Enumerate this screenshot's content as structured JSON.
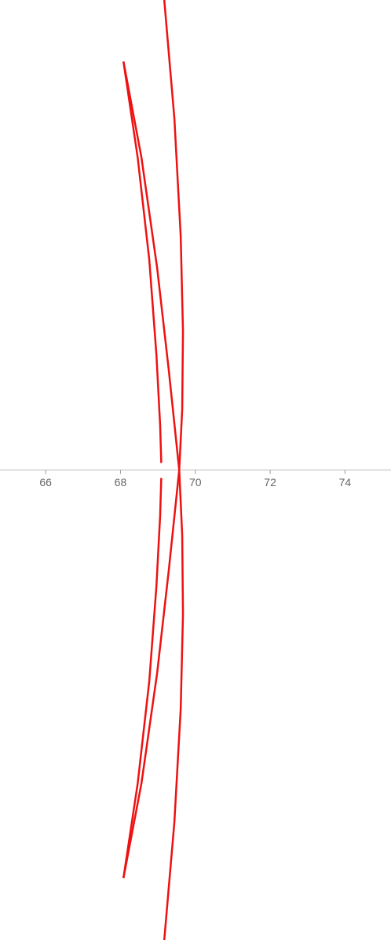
{
  "chart_data": {
    "type": "line",
    "xlim": [
      64.78,
      75.23
    ],
    "ylim": [
      -1.0,
      1.0
    ],
    "xticks": [
      66,
      68,
      70,
      72,
      74
    ],
    "series": [
      {
        "color": "#ee1111",
        "x": [
          69.17,
          69.44,
          69.61,
          69.67,
          69.65,
          69.57,
          69.65,
          69.67,
          69.61,
          69.44,
          69.17
        ],
        "values": [
          1.0,
          0.749,
          0.497,
          0.296,
          0.129,
          0,
          -0.139,
          -0.307,
          -0.508,
          -0.75,
          -1.0
        ]
      },
      {
        "color": "#ee1111",
        "x": [
          68.08,
          68.46,
          68.77,
          68.96,
          69.06,
          69.09,
          null,
          69.09,
          69.06,
          68.96,
          68.77,
          68.46,
          68.08
        ],
        "values": [
          0.869,
          0.665,
          0.447,
          0.246,
          0.095,
          0.015,
          null,
          -0.017,
          -0.097,
          -0.248,
          -0.449,
          -0.667,
          -0.868
        ]
      },
      {
        "color": "#ee1111",
        "x": [
          68.08,
          68.56,
          68.98,
          69.29,
          69.57,
          69.29,
          68.98,
          68.56,
          68.08
        ],
        "values": [
          0.869,
          0.665,
          0.43,
          0.213,
          0,
          -0.214,
          -0.432,
          -0.667,
          -0.868
        ]
      }
    ]
  }
}
